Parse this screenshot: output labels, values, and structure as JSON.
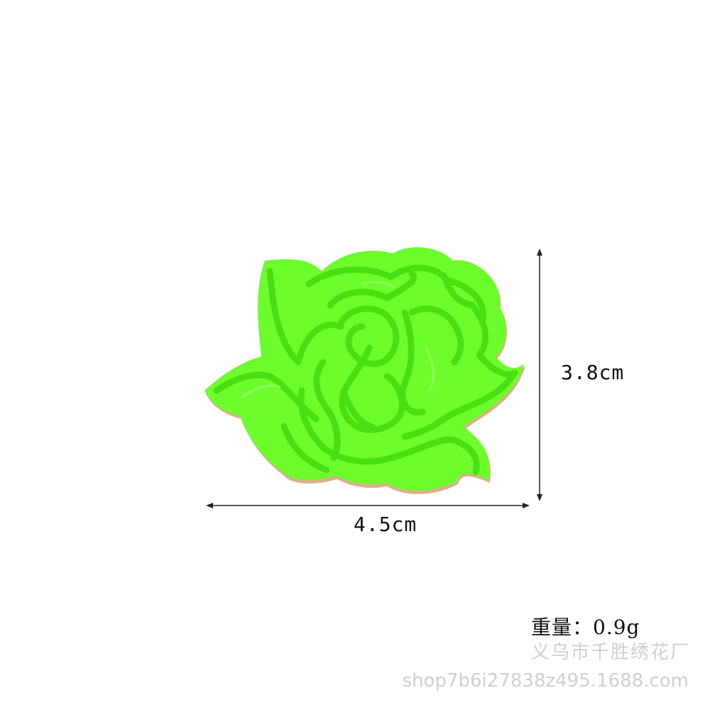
{
  "product": {
    "image_name": "green rose embroidered patch",
    "height_label": "3.8cm",
    "width_label": "4.5cm",
    "weight_label": "重量：0.9g"
  },
  "watermark": {
    "factory": "义乌市千胜绣花厂",
    "shop_url": "shop7b6i27838z495.1688.com"
  },
  "colors": {
    "background": "#ffffff",
    "patch_fill": "#6dfd2c",
    "patch_thread": "#48e012",
    "patch_shadow": "#3bc40a",
    "backing": "#d9b08a"
  }
}
